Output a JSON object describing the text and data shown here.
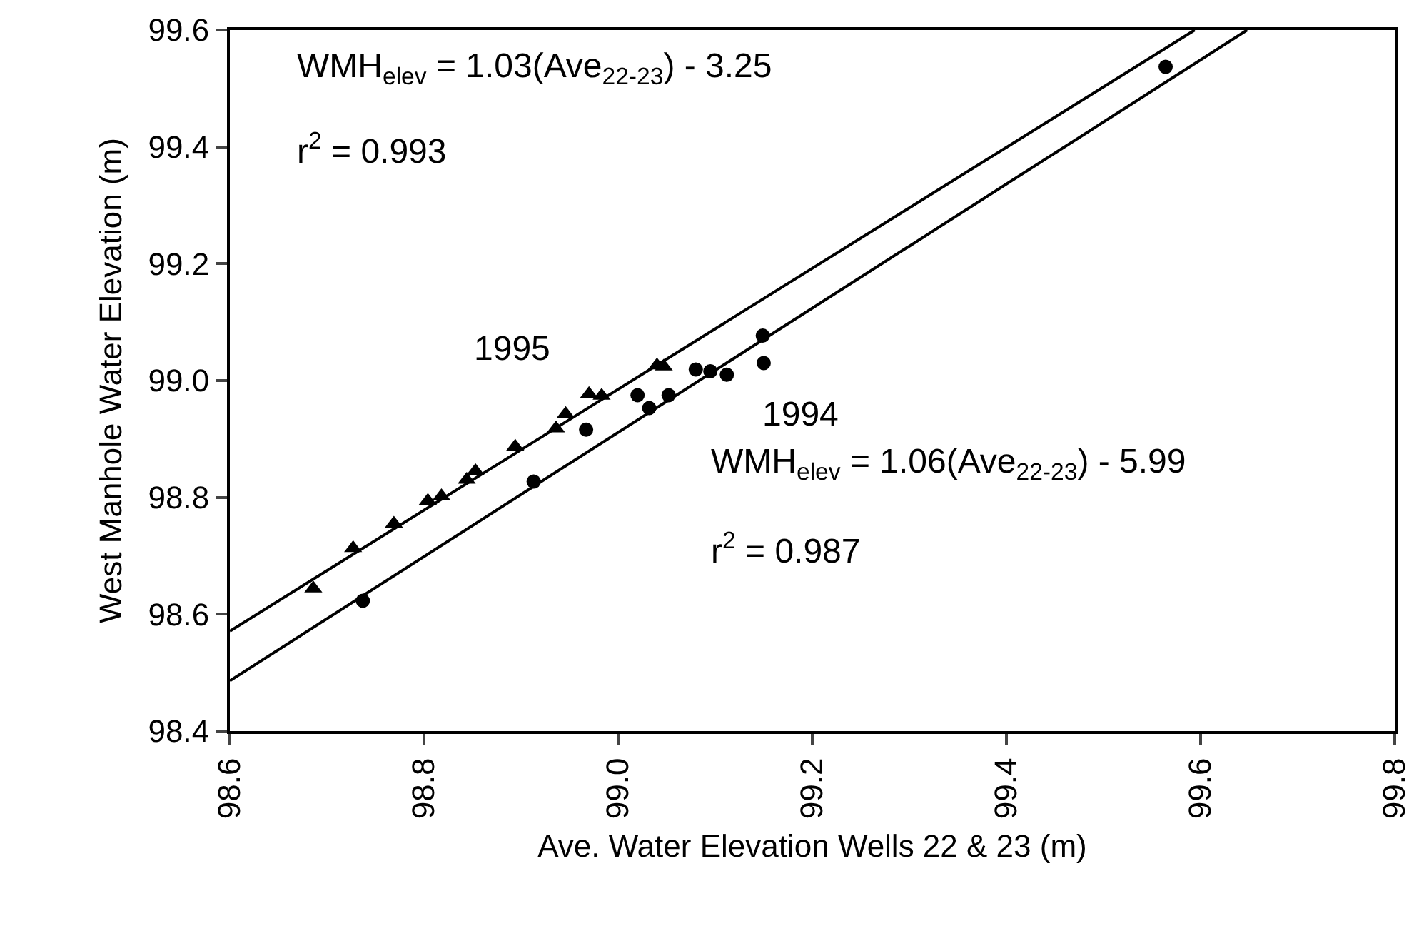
{
  "chart_data": {
    "type": "scatter",
    "xlabel": "Ave. Water Elevation Wells 22 & 23 (m)",
    "ylabel": "West Manhole Water Elevation (m)",
    "xlim": [
      98.6,
      99.8
    ],
    "xticks": [
      {
        "value": 98.6,
        "label": "98.6"
      },
      {
        "value": 98.8,
        "label": "98.8"
      },
      {
        "value": 99.0,
        "label": "99.0"
      },
      {
        "value": 99.2,
        "label": "99.2"
      },
      {
        "value": 99.4,
        "label": "99.4"
      },
      {
        "value": 99.6,
        "label": "99.6"
      },
      {
        "value": 99.8,
        "label": "99.8"
      }
    ],
    "ylim": [
      98.4,
      99.6
    ],
    "yticks": [
      {
        "value": 98.4,
        "label": "98.4"
      },
      {
        "value": 98.6,
        "label": "98.6"
      },
      {
        "value": 98.8,
        "label": "98.8"
      },
      {
        "value": 99.0,
        "label": "99.0"
      },
      {
        "value": 99.2,
        "label": "99.2"
      },
      {
        "value": 99.4,
        "label": "99.4"
      },
      {
        "value": 99.6,
        "label": "99.6"
      }
    ],
    "grid": false,
    "series": [
      {
        "marker": "triangle",
        "color": "#000000",
        "x": [
          98.686,
          98.727,
          98.769,
          98.804,
          98.818,
          98.844,
          98.853,
          98.894,
          98.936,
          98.946,
          98.97,
          98.983,
          99.04,
          99.047
        ],
        "values": [
          98.644,
          98.713,
          98.755,
          98.794,
          98.802,
          98.83,
          98.845,
          98.887,
          98.918,
          98.943,
          98.977,
          98.974,
          99.026,
          99.024
        ]
      },
      {
        "marker": "circle",
        "color": "#000000",
        "x": [
          98.737,
          98.913,
          98.967,
          99.02,
          99.032,
          99.052,
          99.08,
          99.095,
          99.112,
          99.149,
          99.15,
          99.564
        ],
        "values": [
          98.623,
          98.827,
          98.916,
          98.975,
          98.953,
          98.975,
          99.019,
          99.016,
          99.01,
          99.077,
          99.03,
          99.537
        ]
      },
      {
        "type": "line",
        "marker": "none",
        "line_style": "solid",
        "color": "#000000",
        "x": [
          98.6,
          99.594
        ],
        "values": [
          98.571,
          99.6
        ]
      },
      {
        "type": "line",
        "marker": "none",
        "line_style": "solid",
        "color": "#000000",
        "x": [
          98.6,
          99.648
        ],
        "values": [
          98.486,
          99.6
        ]
      }
    ],
    "annotations": [
      "WMH$_{elev}$ = 1.03(Ave$_{22-23}$) - 3.25",
      "r$^{2}$ = 0.993",
      "WMH$_{elev}$ = 1.06(Ave$_{22-23}$) - 5.99",
      "r$^{2}$ = 0.987",
      "1995",
      "1994"
    ]
  }
}
